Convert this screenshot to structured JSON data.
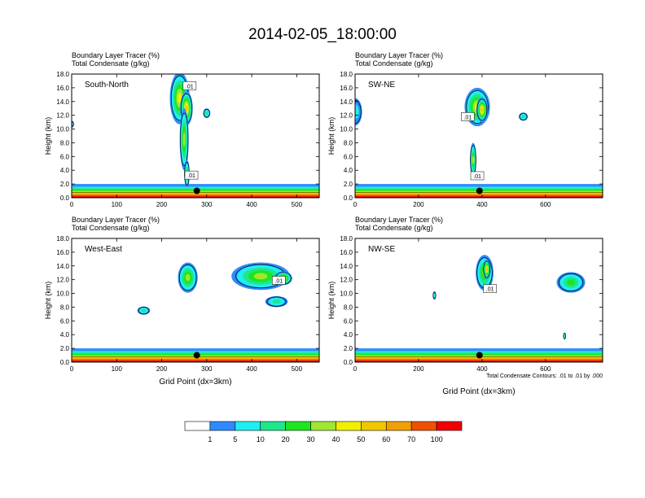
{
  "main_title": "2014-02-05_18:00:00",
  "field_label": "Boundary Layer Tracer",
  "field_unit": "(%)",
  "cond_label": "Total Condensate",
  "cond_unit": "(g/kg)",
  "y_label": "Height (km)",
  "x_label": "Grid Point (dx=3km)",
  "contour_note": "Total Condensate Contours: .01 to .01 by .000",
  "contour_label": ".01",
  "palette": {
    "white": "#ffffff",
    "blue": "#2e8bff",
    "cyan": "#1ef0f0",
    "seagreen": "#1ee68c",
    "green": "#1ee61e",
    "yellowgreen": "#a0e632",
    "yellow": "#f0f000",
    "gold": "#f0c800",
    "orange": "#f0a000",
    "orangered": "#f05000",
    "red": "#f00000"
  },
  "chart_data": [
    {
      "type": "heatmap",
      "name": "South-North",
      "title": "South-North",
      "ylim": [
        0,
        18
      ],
      "xlim": [
        0,
        550
      ],
      "yticks": [
        "0.0",
        "2.0",
        "4.0",
        "6.0",
        "8.0",
        "10.0",
        "12.0",
        "14.0",
        "16.0",
        "18.0"
      ],
      "xticks": [
        0,
        100,
        200,
        300,
        400,
        500
      ],
      "marker": {
        "x": 278,
        "y": 1.0
      },
      "blobs": [
        {
          "x": 240,
          "y": 14.5,
          "rx": 22,
          "ry": 3.8,
          "level": 5
        },
        {
          "x": 255,
          "y": 13.0,
          "rx": 14,
          "ry": 2.5,
          "level": 6
        },
        {
          "x": 250,
          "y": 8.5,
          "rx": 10,
          "ry": 4.5,
          "level": 4
        },
        {
          "x": 256,
          "y": 3.5,
          "rx": 6,
          "ry": 2.0,
          "level": 3
        },
        {
          "x": 300,
          "y": 12.3,
          "rx": 8,
          "ry": 0.7,
          "level": 2
        },
        {
          "x": 0,
          "y": 10.7,
          "rx": 5,
          "ry": 0.5,
          "level": 1
        }
      ],
      "contour_labels": [
        {
          "x": 262,
          "y": 16.3
        },
        {
          "x": 266,
          "y": 3.3
        }
      ]
    },
    {
      "type": "heatmap",
      "name": "SW-NE",
      "title": "SW-NE",
      "ylim": [
        0,
        18
      ],
      "xlim": [
        0,
        780
      ],
      "yticks": [
        "0.0",
        "2.0",
        "4.0",
        "6.0",
        "8.0",
        "10.0",
        "12.0",
        "14.0",
        "16.0",
        "18.0"
      ],
      "xticks": [
        0,
        200,
        400,
        600
      ],
      "marker": {
        "x": 392,
        "y": 1.0
      },
      "blobs": [
        {
          "x": 385,
          "y": 13.2,
          "rx": 40,
          "ry": 2.8,
          "level": 5
        },
        {
          "x": 400,
          "y": 12.8,
          "rx": 18,
          "ry": 1.8,
          "level": 6
        },
        {
          "x": 372,
          "y": 5.5,
          "rx": 10,
          "ry": 2.5,
          "level": 4
        },
        {
          "x": 0,
          "y": 12.5,
          "rx": 22,
          "ry": 2.0,
          "level": 1
        },
        {
          "x": 530,
          "y": 11.8,
          "rx": 14,
          "ry": 0.6,
          "level": 2
        }
      ],
      "contour_labels": [
        {
          "x": 355,
          "y": 11.8
        },
        {
          "x": 385,
          "y": 3.2
        }
      ]
    },
    {
      "type": "heatmap",
      "name": "West-East",
      "title": "West-East",
      "ylim": [
        0,
        18
      ],
      "xlim": [
        0,
        550
      ],
      "yticks": [
        "0.0",
        "2.0",
        "4.0",
        "6.0",
        "8.0",
        "10.0",
        "12.0",
        "14.0",
        "16.0",
        "18.0"
      ],
      "xticks": [
        0,
        100,
        200,
        300,
        400,
        500
      ],
      "marker": {
        "x": 278,
        "y": 1.0
      },
      "blobs": [
        {
          "x": 258,
          "y": 12.3,
          "rx": 22,
          "ry": 2.2,
          "level": 4
        },
        {
          "x": 420,
          "y": 12.5,
          "rx": 65,
          "ry": 2.0,
          "level": 4
        },
        {
          "x": 455,
          "y": 8.8,
          "rx": 25,
          "ry": 0.8,
          "level": 2
        },
        {
          "x": 160,
          "y": 7.5,
          "rx": 14,
          "ry": 0.6,
          "level": 2
        },
        {
          "x": 470,
          "y": 12.2,
          "rx": 20,
          "ry": 1.0,
          "level": 5
        }
      ],
      "contour_labels": [
        {
          "x": 460,
          "y": 11.9
        }
      ]
    },
    {
      "type": "heatmap",
      "name": "NW-SE",
      "title": "NW-SE",
      "ylim": [
        0,
        18
      ],
      "xlim": [
        0,
        780
      ],
      "yticks": [
        "0.0",
        "2.0",
        "4.0",
        "6.0",
        "8.0",
        "10.0",
        "12.0",
        "14.0",
        "16.0",
        "18.0"
      ],
      "xticks": [
        0,
        200,
        400,
        600
      ],
      "marker": {
        "x": 392,
        "y": 1.0
      },
      "blobs": [
        {
          "x": 408,
          "y": 13.0,
          "rx": 28,
          "ry": 2.6,
          "level": 4
        },
        {
          "x": 415,
          "y": 13.5,
          "rx": 12,
          "ry": 1.4,
          "level": 6
        },
        {
          "x": 680,
          "y": 11.6,
          "rx": 45,
          "ry": 1.5,
          "level": 3
        },
        {
          "x": 250,
          "y": 9.7,
          "rx": 5,
          "ry": 0.6,
          "level": 1
        },
        {
          "x": 660,
          "y": 3.8,
          "rx": 4,
          "ry": 0.5,
          "level": 2
        }
      ],
      "contour_labels": [
        {
          "x": 425,
          "y": 10.7
        }
      ]
    }
  ],
  "colorbar": {
    "labels": [
      "1",
      "5",
      "10",
      "20",
      "30",
      "40",
      "50",
      "60",
      "70",
      "100"
    ],
    "colors": [
      "#ffffff",
      "#2e8bff",
      "#1ef0f0",
      "#1ee68c",
      "#1ee61e",
      "#a0e632",
      "#f0f000",
      "#f0c800",
      "#f0a000",
      "#f05000",
      "#f00000"
    ]
  }
}
